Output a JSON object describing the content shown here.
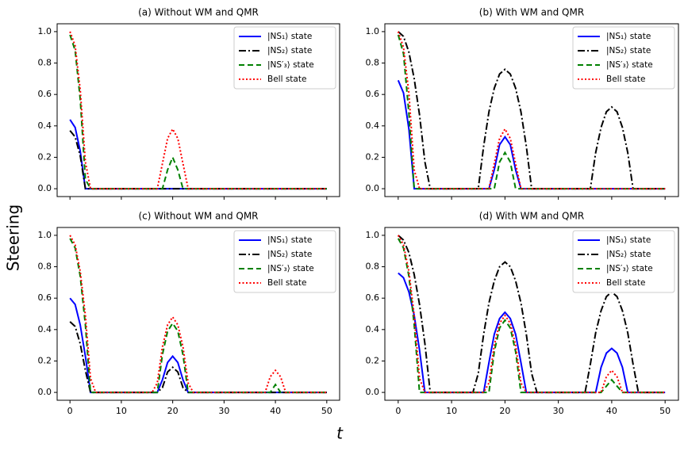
{
  "figure": {
    "xlabel": "t",
    "ylabel": "Steering"
  },
  "chart_data": [
    {
      "type": "line",
      "title": "(a) Without WM and QMR",
      "x": [
        0,
        1,
        2,
        3,
        4,
        5,
        6,
        10,
        14,
        15,
        16,
        17,
        18,
        19,
        20,
        21,
        22,
        23,
        24,
        25,
        26,
        30,
        34,
        35,
        36,
        37,
        38,
        39,
        40,
        41,
        42,
        43,
        44,
        45,
        46,
        50
      ],
      "xlim": [
        -2.5,
        52.5
      ],
      "xticks": [
        0,
        10,
        20,
        30,
        40,
        50
      ],
      "ylim": [
        -0.05,
        1.05
      ],
      "yticks": [
        {
          "value": 0,
          "label": "0.0"
        },
        0.2,
        0.4,
        0.6,
        0.8,
        {
          "value": 1,
          "label": "1.0"
        }
      ],
      "legend": "upper right",
      "series": [
        {
          "name": "|NS₁⟩ state",
          "color": "#0000ff",
          "dash": "solid",
          "values": [
            0.44,
            0.39,
            0.24,
            0,
            0,
            0,
            0,
            0,
            0,
            0,
            0,
            0,
            0,
            0,
            0,
            0,
            0,
            0,
            0,
            0,
            0,
            0,
            0,
            0,
            0,
            0,
            0,
            0,
            0,
            0,
            0,
            0,
            0,
            0,
            0,
            0
          ]
        },
        {
          "name": "|NS₂⟩ state",
          "color": "#000000",
          "dash": "dashdot",
          "values": [
            0.37,
            0.33,
            0.21,
            0,
            0,
            0,
            0,
            0,
            0,
            0,
            0,
            0,
            0,
            0,
            0,
            0,
            0,
            0,
            0,
            0,
            0,
            0,
            0,
            0,
            0,
            0,
            0,
            0,
            0,
            0,
            0,
            0,
            0,
            0,
            0,
            0
          ]
        },
        {
          "name": "|NS′₃⟩ state",
          "color": "#008000",
          "dash": "dashed",
          "values": [
            0.98,
            0.88,
            0.57,
            0.06,
            0,
            0,
            0,
            0,
            0,
            0,
            0,
            0,
            0,
            0.12,
            0.2,
            0.12,
            0,
            0,
            0,
            0,
            0,
            0,
            0,
            0,
            0,
            0,
            0,
            0,
            0,
            0,
            0,
            0,
            0,
            0,
            0,
            0
          ]
        },
        {
          "name": "Bell state",
          "color": "#ff0000",
          "dash": "dotted",
          "values": [
            1.0,
            0.91,
            0.63,
            0.17,
            0,
            0,
            0,
            0,
            0,
            0,
            0,
            0,
            0.16,
            0.32,
            0.38,
            0.32,
            0.16,
            0,
            0,
            0,
            0,
            0,
            0,
            0,
            0,
            0,
            0,
            0,
            0,
            0,
            0,
            0,
            0,
            0,
            0,
            0
          ]
        }
      ]
    },
    {
      "type": "line",
      "title": "(b) With WM and QMR",
      "x": [
        0,
        1,
        2,
        3,
        4,
        5,
        6,
        10,
        14,
        15,
        16,
        17,
        18,
        19,
        20,
        21,
        22,
        23,
        24,
        25,
        26,
        30,
        34,
        35,
        36,
        37,
        38,
        39,
        40,
        41,
        42,
        43,
        44,
        45,
        46,
        50
      ],
      "xlim": [
        -2.5,
        52.5
      ],
      "xticks": [
        0,
        10,
        20,
        30,
        40,
        50
      ],
      "ylim": [
        -0.05,
        1.05
      ],
      "yticks": [
        {
          "value": 0,
          "label": "0.0"
        },
        0.2,
        0.4,
        0.6,
        0.8,
        {
          "value": 1,
          "label": "1.0"
        }
      ],
      "legend": "upper right",
      "series": [
        {
          "name": "|NS₁⟩ state",
          "color": "#0000ff",
          "dash": "solid",
          "values": [
            0.69,
            0.61,
            0.38,
            0,
            0,
            0,
            0,
            0,
            0,
            0,
            0,
            0,
            0.12,
            0.28,
            0.33,
            0.28,
            0.12,
            0,
            0,
            0,
            0,
            0,
            0,
            0,
            0,
            0,
            0,
            0,
            0,
            0,
            0,
            0,
            0,
            0,
            0,
            0
          ]
        },
        {
          "name": "|NS₂⟩ state",
          "color": "#000000",
          "dash": "dashdot",
          "values": [
            1.0,
            0.97,
            0.87,
            0.7,
            0.47,
            0.17,
            0,
            0,
            0,
            0,
            0.27,
            0.49,
            0.64,
            0.73,
            0.76,
            0.73,
            0.64,
            0.49,
            0.27,
            0,
            0,
            0,
            0,
            0,
            0,
            0.23,
            0.39,
            0.49,
            0.52,
            0.49,
            0.39,
            0.23,
            0,
            0,
            0,
            0
          ]
        },
        {
          "name": "|NS′₃⟩ state",
          "color": "#008000",
          "dash": "dashed",
          "values": [
            0.98,
            0.86,
            0.48,
            0,
            0,
            0,
            0,
            0,
            0,
            0,
            0,
            0,
            0,
            0.17,
            0.23,
            0.17,
            0,
            0,
            0,
            0,
            0,
            0,
            0,
            0,
            0,
            0,
            0,
            0,
            0,
            0,
            0,
            0,
            0,
            0,
            0,
            0
          ]
        },
        {
          "name": "Bell state",
          "color": "#ff0000",
          "dash": "dotted",
          "values": [
            1.0,
            0.9,
            0.61,
            0.12,
            0,
            0,
            0,
            0,
            0,
            0,
            0,
            0,
            0.16,
            0.32,
            0.38,
            0.32,
            0.16,
            0,
            0,
            0,
            0,
            0,
            0,
            0,
            0,
            0,
            0,
            0,
            0,
            0,
            0,
            0,
            0,
            0,
            0,
            0
          ]
        }
      ]
    },
    {
      "type": "line",
      "title": "(c) Without WM and QMR",
      "x": [
        0,
        1,
        2,
        3,
        4,
        5,
        6,
        10,
        14,
        15,
        16,
        17,
        18,
        19,
        20,
        21,
        22,
        23,
        24,
        25,
        26,
        30,
        34,
        35,
        36,
        37,
        38,
        39,
        40,
        41,
        42,
        43,
        44,
        45,
        46,
        50
      ],
      "xlim": [
        -2.5,
        52.5
      ],
      "xticks": [
        0,
        10,
        20,
        30,
        40,
        50
      ],
      "ylim": [
        -0.05,
        1.05
      ],
      "yticks": [
        {
          "value": 0,
          "label": "0.0"
        },
        0.2,
        0.4,
        0.6,
        0.8,
        {
          "value": 1,
          "label": "1.0"
        }
      ],
      "legend": "upper right",
      "series": [
        {
          "name": "|NS₁⟩ state",
          "color": "#0000ff",
          "dash": "solid",
          "values": [
            0.6,
            0.56,
            0.43,
            0.23,
            0,
            0,
            0,
            0,
            0,
            0,
            0,
            0,
            0.08,
            0.19,
            0.23,
            0.19,
            0.08,
            0,
            0,
            0,
            0,
            0,
            0,
            0,
            0,
            0,
            0,
            0,
            0,
            0,
            0,
            0,
            0,
            0,
            0,
            0
          ]
        },
        {
          "name": "|NS₂⟩ state",
          "color": "#000000",
          "dash": "dashdot",
          "values": [
            0.45,
            0.42,
            0.31,
            0.14,
            0,
            0,
            0,
            0,
            0,
            0,
            0,
            0,
            0.03,
            0.13,
            0.16,
            0.13,
            0.03,
            0,
            0,
            0,
            0,
            0,
            0,
            0,
            0,
            0,
            0,
            0,
            0,
            0,
            0,
            0,
            0,
            0,
            0,
            0
          ]
        },
        {
          "name": "|NS′₃⟩ state",
          "color": "#008000",
          "dash": "dashed",
          "values": [
            0.98,
            0.92,
            0.74,
            0.43,
            0,
            0,
            0,
            0,
            0,
            0,
            0,
            0,
            0.24,
            0.39,
            0.44,
            0.39,
            0.24,
            0,
            0,
            0,
            0,
            0,
            0,
            0,
            0,
            0,
            0,
            0,
            0.05,
            0,
            0,
            0,
            0,
            0,
            0,
            0
          ]
        },
        {
          "name": "Bell state",
          "color": "#ff0000",
          "dash": "dotted",
          "values": [
            1.0,
            0.94,
            0.77,
            0.49,
            0.09,
            0,
            0,
            0,
            0,
            0,
            0,
            0.06,
            0.29,
            0.43,
            0.48,
            0.43,
            0.29,
            0.06,
            0,
            0,
            0,
            0,
            0,
            0,
            0,
            0,
            0,
            0.1,
            0.14,
            0.1,
            0,
            0,
            0,
            0,
            0,
            0
          ]
        }
      ]
    },
    {
      "type": "line",
      "title": "(d) With WM and QMR",
      "x": [
        0,
        1,
        2,
        3,
        4,
        5,
        6,
        10,
        14,
        15,
        16,
        17,
        18,
        19,
        20,
        21,
        22,
        23,
        24,
        25,
        26,
        30,
        34,
        35,
        36,
        37,
        38,
        39,
        40,
        41,
        42,
        43,
        44,
        45,
        46,
        50
      ],
      "xlim": [
        -2.5,
        52.5
      ],
      "xticks": [
        0,
        10,
        20,
        30,
        40,
        50
      ],
      "ylim": [
        -0.05,
        1.05
      ],
      "yticks": [
        {
          "value": 0,
          "label": "0.0"
        },
        0.2,
        0.4,
        0.6,
        0.8,
        {
          "value": 1,
          "label": "1.0"
        }
      ],
      "legend": "upper right",
      "series": [
        {
          "name": "|NS₁⟩ state",
          "color": "#0000ff",
          "dash": "solid",
          "values": [
            0.76,
            0.73,
            0.64,
            0.49,
            0.27,
            0,
            0,
            0,
            0,
            0,
            0,
            0.19,
            0.37,
            0.47,
            0.51,
            0.47,
            0.37,
            0.19,
            0,
            0,
            0,
            0,
            0,
            0,
            0,
            0,
            0.16,
            0.25,
            0.28,
            0.25,
            0.16,
            0,
            0,
            0,
            0,
            0
          ]
        },
        {
          "name": "|NS₂⟩ state",
          "color": "#000000",
          "dash": "dashdot",
          "values": [
            1.0,
            0.97,
            0.89,
            0.75,
            0.56,
            0.31,
            0,
            0,
            0,
            0.12,
            0.37,
            0.57,
            0.71,
            0.8,
            0.83,
            0.8,
            0.71,
            0.57,
            0.37,
            0.12,
            0,
            0,
            0,
            0,
            0.18,
            0.38,
            0.52,
            0.61,
            0.64,
            0.61,
            0.52,
            0.38,
            0.18,
            0,
            0,
            0
          ]
        },
        {
          "name": "|NS′₃⟩ state",
          "color": "#008000",
          "dash": "dashed",
          "values": [
            0.98,
            0.92,
            0.74,
            0.43,
            0,
            0,
            0,
            0,
            0,
            0,
            0,
            0,
            0.26,
            0.41,
            0.46,
            0.41,
            0.26,
            0,
            0,
            0,
            0,
            0,
            0,
            0,
            0,
            0,
            0,
            0.04,
            0.08,
            0.04,
            0,
            0,
            0,
            0,
            0,
            0
          ]
        },
        {
          "name": "Bell state",
          "color": "#ff0000",
          "dash": "dotted",
          "values": [
            1.0,
            0.94,
            0.77,
            0.49,
            0.09,
            0,
            0,
            0,
            0,
            0,
            0,
            0.06,
            0.3,
            0.44,
            0.49,
            0.44,
            0.3,
            0.06,
            0,
            0,
            0,
            0,
            0,
            0,
            0,
            0,
            0,
            0.1,
            0.14,
            0.1,
            0,
            0,
            0,
            0,
            0,
            0
          ]
        }
      ]
    }
  ]
}
